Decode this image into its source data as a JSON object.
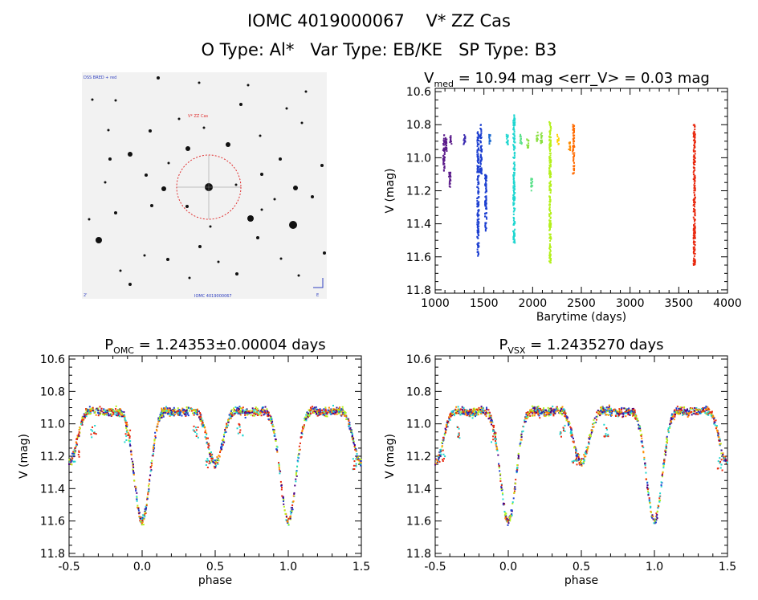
{
  "header": {
    "line1": "IOMC 4019000067    V* ZZ Cas",
    "line2": "O Type: Al*   Var Type: EB/KE   SP Type: B3"
  },
  "finder_chart": {
    "corner_tl": "DSS BRED + red",
    "target_label": "V* ZZ Cas",
    "bottom_center": "IOMC 4019000067",
    "bottom_left": "2'",
    "bottom_right": "E"
  },
  "colors": {
    "series": [
      "#4b0082",
      "#1c3fd0",
      "#1fd6d0",
      "#b3f01a",
      "#ff8c00",
      "#e8280e"
    ],
    "circle": "#e03030"
  },
  "chart_data": [
    {
      "type": "scatter",
      "title": "V_med = 10.94 mag <err_V> = 0.03 mag",
      "title_parts": {
        "v": "V",
        "sub": "med",
        "rest": " = 10.94 mag <err_V> = 0.03 mag"
      },
      "xlabel": "Barytime (days)",
      "ylabel": "V (mag)",
      "xlim": [
        1000,
        4000
      ],
      "ylim": [
        11.82,
        10.58
      ],
      "xticks": [
        1000,
        1500,
        2000,
        2500,
        3000,
        3500,
        4000
      ],
      "yticks": [
        10.6,
        10.8,
        11.0,
        11.2,
        11.4,
        11.6,
        11.8
      ],
      "segments": [
        {
          "x": 1090,
          "y1": 10.86,
          "y2": 11.08,
          "color": "#5a1a8a"
        },
        {
          "x": 1110,
          "y1": 10.88,
          "y2": 10.98,
          "color": "#5a1a8a"
        },
        {
          "x": 1150,
          "y1": 11.08,
          "y2": 11.18,
          "color": "#5a1a8a"
        },
        {
          "x": 1160,
          "y1": 10.86,
          "y2": 10.92,
          "color": "#5a1a8a"
        },
        {
          "x": 1300,
          "y1": 10.86,
          "y2": 10.92,
          "color": "#3a2ab0"
        },
        {
          "x": 1440,
          "y1": 10.84,
          "y2": 11.6,
          "color": "#1c3fd0"
        },
        {
          "x": 1470,
          "y1": 10.8,
          "y2": 11.1,
          "color": "#1c3fd0"
        },
        {
          "x": 1520,
          "y1": 11.1,
          "y2": 11.45,
          "color": "#1c3fd0"
        },
        {
          "x": 1560,
          "y1": 10.86,
          "y2": 10.92,
          "color": "#1c6ad0"
        },
        {
          "x": 1740,
          "y1": 10.86,
          "y2": 10.92,
          "color": "#1fd6d0"
        },
        {
          "x": 1810,
          "y1": 10.74,
          "y2": 11.54,
          "color": "#1fd6d0"
        },
        {
          "x": 1880,
          "y1": 10.86,
          "y2": 10.92,
          "color": "#5ae08a"
        },
        {
          "x": 1950,
          "y1": 10.88,
          "y2": 10.94,
          "color": "#8ae040"
        },
        {
          "x": 1990,
          "y1": 11.12,
          "y2": 11.2,
          "color": "#5ae08a"
        },
        {
          "x": 2050,
          "y1": 10.84,
          "y2": 10.9,
          "color": "#8ae040"
        },
        {
          "x": 2090,
          "y1": 10.84,
          "y2": 10.92,
          "color": "#8ae040"
        },
        {
          "x": 2180,
          "y1": 10.78,
          "y2": 11.64,
          "color": "#b3f01a"
        },
        {
          "x": 2260,
          "y1": 10.86,
          "y2": 10.92,
          "color": "#ffd000"
        },
        {
          "x": 2380,
          "y1": 10.9,
          "y2": 10.96,
          "color": "#ff8c00"
        },
        {
          "x": 2420,
          "y1": 10.8,
          "y2": 11.1,
          "color": "#ff6a00"
        },
        {
          "x": 3660,
          "y1": 10.8,
          "y2": 11.66,
          "color": "#e8280e"
        }
      ]
    },
    {
      "type": "scatter",
      "title": "P_OMC = 1.24353±0.00004 days",
      "title_parts": {
        "p": "P",
        "sub": "OMC",
        "rest": " = 1.24353±0.00004 days"
      },
      "xlabel": "phase",
      "ylabel": "V (mag)",
      "xlim": [
        -0.5,
        1.5
      ],
      "ylim": [
        11.82,
        10.58
      ],
      "xticks": [
        -0.5,
        0.0,
        0.5,
        1.0,
        1.5
      ],
      "yticks": [
        10.6,
        10.8,
        11.0,
        11.2,
        11.4,
        11.6,
        11.8
      ],
      "model": {
        "max": 10.87,
        "primary_depth": 0.73,
        "secondary_depth": 0.37,
        "width": 0.055
      }
    },
    {
      "type": "scatter",
      "title": "P_VSX = 1.2435270 days",
      "title_parts": {
        "p": "P",
        "sub": "VSX",
        "rest": " = 1.2435270 days"
      },
      "xlabel": "phase",
      "ylabel": "V (mag)",
      "xlim": [
        -0.5,
        1.5
      ],
      "ylim": [
        11.82,
        10.58
      ],
      "xticks": [
        -0.5,
        0.0,
        0.5,
        1.0,
        1.5
      ],
      "yticks": [
        10.6,
        10.8,
        11.0,
        11.2,
        11.4,
        11.6,
        11.8
      ],
      "model": {
        "max": 10.87,
        "primary_depth": 0.73,
        "secondary_depth": 0.37,
        "width": 0.055
      }
    }
  ]
}
